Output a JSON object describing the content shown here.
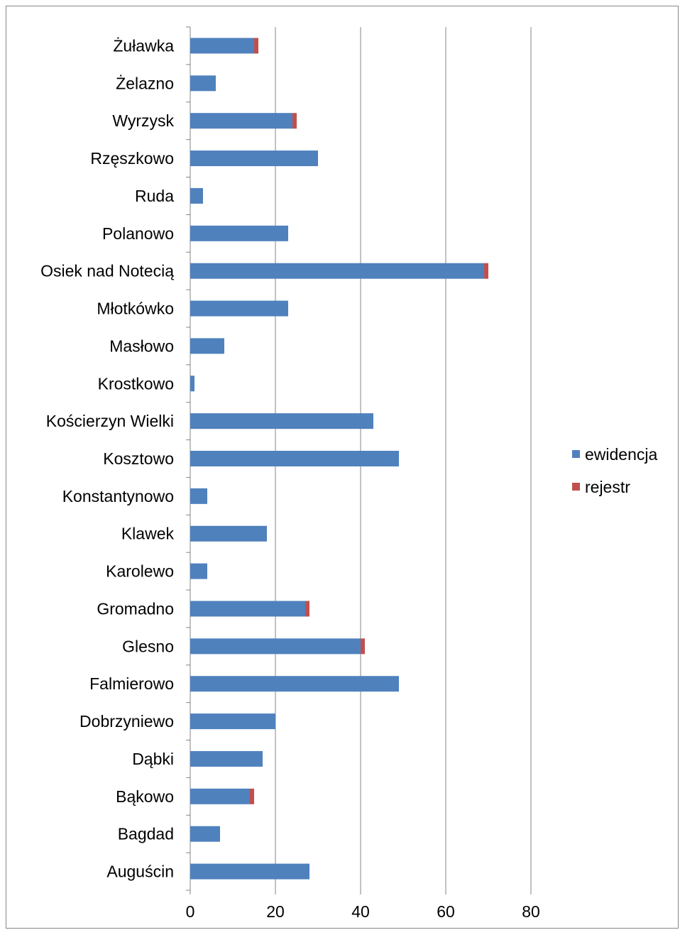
{
  "chart_data": {
    "type": "bar",
    "orientation": "horizontal",
    "stacked": true,
    "categories": [
      "Auguścin",
      "Bagdad",
      "Bąkowo",
      "Dąbki",
      "Dobrzyniewo",
      "Falmierowo",
      "Glesno",
      "Gromadno",
      "Karolewo",
      "Klawek",
      "Konstantynowo",
      "Kosztowo",
      "Kościerzyn Wielki",
      "Krostkowo",
      "Masłowo",
      "Młotkówko",
      "Osiek nad Notecią",
      "Polanowo",
      "Ruda",
      "Rzęszkowo",
      "Wyrzysk",
      "Żelazno",
      "Żuławka"
    ],
    "series": [
      {
        "name": "ewidencja",
        "color": "#4f81bd",
        "values": [
          28,
          7,
          14,
          17,
          20,
          49,
          40,
          27,
          4,
          18,
          4,
          49,
          43,
          1,
          8,
          23,
          69,
          23,
          3,
          30,
          24,
          6,
          15
        ]
      },
      {
        "name": "rejestr",
        "color": "#c0504d",
        "values": [
          0,
          0,
          1,
          0,
          0,
          0,
          1,
          1,
          0,
          0,
          0,
          0,
          0,
          0,
          0,
          0,
          1,
          0,
          0,
          0,
          1,
          0,
          1
        ]
      }
    ],
    "xlim": [
      0,
      80
    ],
    "xticks": [
      0,
      20,
      40,
      60,
      80
    ],
    "grid": true,
    "legend_position": "right",
    "title": "",
    "xlabel": "",
    "ylabel": ""
  }
}
